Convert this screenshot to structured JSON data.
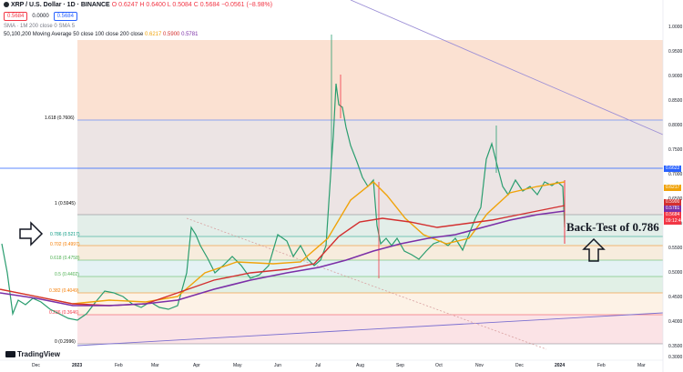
{
  "header": {
    "symbol_line": "XRP / U.S. Dollar · 1D · BINANCE",
    "ohlc": "O 0.6247  H 0.6400  L 0.5084  C 0.5684  −0.0561 (−8.98%)",
    "sell_price": "0.5684",
    "spread": "0.0000",
    "buy_price": "0.5684",
    "indicator1": "SMA · 1M 200 close 0 SMA 5",
    "indicator2_label": "50,100,200 Moving Average 50 close 100 close 200 close",
    "indicator2_values": [
      "0.6217",
      "0.5900",
      "0.5781"
    ],
    "colors": {
      "ma50": "#f0a30a",
      "ma100": "#d32f2f",
      "ma200": "#7b2fa7"
    }
  },
  "fib_levels": [
    {
      "label": "1.618 (0.7606)",
      "value": 0.7606,
      "color": "#2962ff"
    },
    {
      "label": "1 (0.5945)",
      "value": 0.5945,
      "color": "#787b86"
    },
    {
      "label": "0.786 (0.5217)",
      "value": 0.5217,
      "color": "#089981"
    },
    {
      "label": "0.702 (0.4997)",
      "value": 0.4997,
      "color": "#f57c00"
    },
    {
      "label": "0.618 (0.4758)",
      "value": 0.4758,
      "color": "#4caf50"
    },
    {
      "label": "0.5 (0.4402)",
      "value": 0.4402,
      "color": "#4caf50"
    },
    {
      "label": "0.382 (0.4049)",
      "value": 0.4049,
      "color": "#f57c00"
    },
    {
      "label": "0.236 (0.3646)",
      "value": 0.3646,
      "color": "#f23645"
    },
    {
      "label": "0 (0.2996)",
      "value": 0.2996,
      "color": "#787b86"
    }
  ],
  "price_axis": {
    "ticks": [
      "1.0000",
      "0.9500",
      "0.9000",
      "0.8500",
      "0.8000",
      "0.7500",
      "0.7000",
      "0.6500",
      "0.6000",
      "0.5500",
      "0.5000",
      "0.4500",
      "0.4000",
      "0.3500",
      "0.3000"
    ],
    "badges": [
      {
        "text": "0.6622",
        "value": 0.6622,
        "color": "#2962ff"
      },
      {
        "text": "0.6217",
        "value": 0.6217,
        "color": "#f0a30a"
      },
      {
        "text": "0.5900",
        "value": 0.59,
        "color": "#d32f2f"
      },
      {
        "text": "0.5781",
        "value": 0.5781,
        "color": "#7b2fa7"
      },
      {
        "text": "0.5684",
        "value": 0.5684,
        "color": "#f23645"
      },
      {
        "text": "09:12:40",
        "value": 0.5579,
        "color": "#f23645"
      }
    ]
  },
  "time_axis": [
    "Dec",
    "2023",
    "Feb",
    "Mar",
    "Apr",
    "May",
    "Jun",
    "Jul",
    "Aug",
    "Sep",
    "Oct",
    "Nov",
    "Dec",
    "2024",
    "Feb",
    "Mar"
  ],
  "annotation": {
    "text": "Back-Test of 0.786"
  },
  "logo": "TradingView"
}
